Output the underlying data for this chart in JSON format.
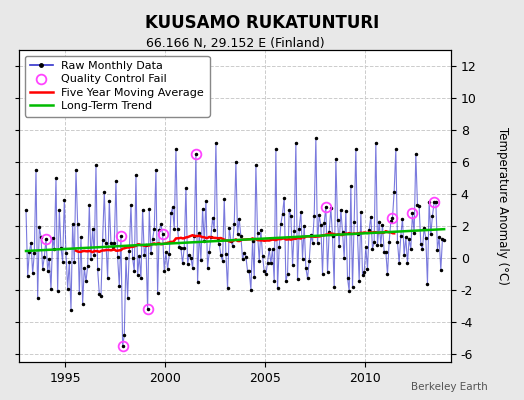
{
  "title": "KUUSAMO RUKATUNTURI",
  "subtitle": "66.166 N, 29.152 E (Finland)",
  "ylabel": "Temperature Anomaly (°C)",
  "watermark": "Berkeley Earth",
  "bg_color": "#e8e8e8",
  "plot_bg_color": "#ffffff",
  "ylim": [
    -6.5,
    13
  ],
  "xlim": [
    1992.7,
    2014.3
  ],
  "yticks": [
    -6,
    -4,
    -2,
    0,
    2,
    4,
    6,
    8,
    10,
    12
  ],
  "xticks": [
    1995,
    2000,
    2005,
    2010
  ],
  "raw_color": "#3333cc",
  "ma_color": "#ff0000",
  "trend_color": "#00bb00",
  "qc_color": "#ff44ff",
  "raw_linewidth": 0.8,
  "ma_linewidth": 1.8,
  "trend_linewidth": 1.8,
  "marker_size": 3,
  "grid_color": "#cccccc",
  "grid_linestyle": "--",
  "legend_fontsize": 8,
  "title_fontsize": 12,
  "subtitle_fontsize": 9,
  "tick_labelsize": 9
}
